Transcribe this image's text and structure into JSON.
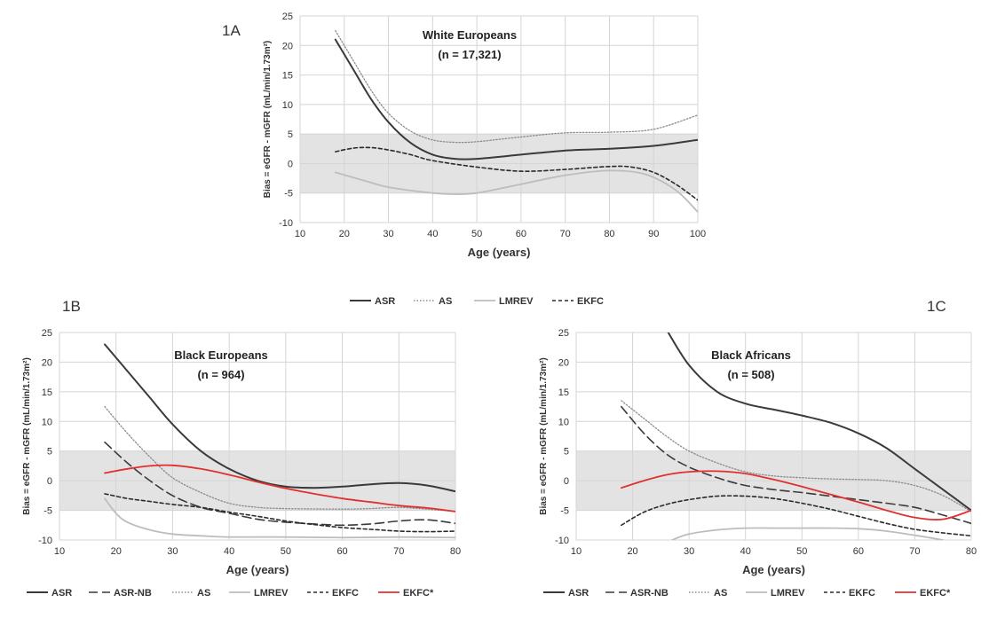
{
  "figure": {
    "label_a": "1A",
    "label_b": "1B",
    "label_c": "1C"
  },
  "legend_top": [
    "ASR",
    "AS",
    "LMREV",
    "EKFC"
  ],
  "legend_bottom": [
    "ASR",
    "ASR-NB",
    "AS",
    "LMREV",
    "EKFC",
    "EKFC*"
  ],
  "styles": {
    "ASR": {
      "color": "#3a3a3a",
      "dash": "",
      "width": 2
    },
    "ASR-NB": {
      "color": "#3a3a3a",
      "dash": "10,5",
      "width": 1.6
    },
    "AS": {
      "color": "#8c8c8c",
      "dash": "1.5,2",
      "width": 1.3
    },
    "LMREV": {
      "color": "#bdbdbd",
      "dash": "",
      "width": 1.8
    },
    "EKFC": {
      "color": "#2a2a2a",
      "dash": "4,3",
      "width": 1.6
    },
    "EKFC*": {
      "color": "#e0312f",
      "dash": "",
      "width": 1.8
    }
  },
  "band_color": "#e3e3e3",
  "chart_data": [
    {
      "id": "1A",
      "type": "line",
      "inset_title": "White Europeans",
      "inset_n": "(n = 17,321)",
      "xlabel": "Age (years)",
      "ylabel": "Bias = eGFR - mGFR (mL/min/1.73m²)",
      "xlim": [
        10,
        100
      ],
      "ylim": [
        -10,
        25
      ],
      "xticks": [
        10,
        20,
        30,
        40,
        50,
        60,
        70,
        80,
        90,
        100
      ],
      "yticks": [
        -10,
        -5,
        0,
        5,
        10,
        15,
        20,
        25
      ],
      "band": [
        -5,
        5
      ],
      "grid": true,
      "series": [
        {
          "name": "ASR",
          "points": [
            [
              18,
              21
            ],
            [
              22,
              16
            ],
            [
              26,
              11
            ],
            [
              30,
              7
            ],
            [
              35,
              3.5
            ],
            [
              40,
              1.5
            ],
            [
              45,
              0.8
            ],
            [
              50,
              0.8
            ],
            [
              60,
              1.5
            ],
            [
              70,
              2.2
            ],
            [
              80,
              2.5
            ],
            [
              90,
              3
            ],
            [
              100,
              4
            ]
          ]
        },
        {
          "name": "AS",
          "points": [
            [
              18,
              22.5
            ],
            [
              22,
              17.5
            ],
            [
              26,
              12.5
            ],
            [
              30,
              8.5
            ],
            [
              35,
              5.5
            ],
            [
              40,
              4
            ],
            [
              45,
              3.6
            ],
            [
              50,
              3.7
            ],
            [
              60,
              4.5
            ],
            [
              70,
              5.2
            ],
            [
              80,
              5.3
            ],
            [
              90,
              5.8
            ],
            [
              100,
              8.2
            ]
          ]
        },
        {
          "name": "LMREV",
          "points": [
            [
              18,
              -1.5
            ],
            [
              25,
              -3
            ],
            [
              30,
              -4
            ],
            [
              40,
              -5
            ],
            [
              45,
              -5.2
            ],
            [
              50,
              -5
            ],
            [
              60,
              -3.5
            ],
            [
              70,
              -2
            ],
            [
              80,
              -1.2
            ],
            [
              88,
              -1.8
            ],
            [
              95,
              -4.5
            ],
            [
              100,
              -8.2
            ]
          ]
        },
        {
          "name": "EKFC",
          "points": [
            [
              18,
              2
            ],
            [
              22,
              2.6
            ],
            [
              26,
              2.7
            ],
            [
              30,
              2.3
            ],
            [
              35,
              1.5
            ],
            [
              40,
              0.5
            ],
            [
              50,
              -0.6
            ],
            [
              60,
              -1.3
            ],
            [
              70,
              -1
            ],
            [
              80,
              -0.5
            ],
            [
              85,
              -0.6
            ],
            [
              90,
              -1.5
            ],
            [
              95,
              -3.5
            ],
            [
              100,
              -6.2
            ]
          ]
        }
      ]
    },
    {
      "id": "1B",
      "type": "line",
      "inset_title": "Black Europeans",
      "inset_n": "(n = 964)",
      "xlabel": "Age (years)",
      "ylabel": "Bias = eGFR - mGFR (mL/min/1.73m²)",
      "xlim": [
        10,
        80
      ],
      "ylim": [
        -10,
        25
      ],
      "xticks": [
        10,
        20,
        30,
        40,
        50,
        60,
        70,
        80
      ],
      "yticks": [
        -10,
        -5,
        0,
        5,
        10,
        15,
        20,
        25
      ],
      "band": [
        -5,
        5
      ],
      "grid": true,
      "series": [
        {
          "name": "ASR",
          "points": [
            [
              18,
              23
            ],
            [
              22,
              18.5
            ],
            [
              26,
              14
            ],
            [
              30,
              9.5
            ],
            [
              35,
              5
            ],
            [
              40,
              2
            ],
            [
              45,
              0
            ],
            [
              50,
              -1
            ],
            [
              55,
              -1.2
            ],
            [
              60,
              -1
            ],
            [
              65,
              -0.6
            ],
            [
              70,
              -0.4
            ],
            [
              75,
              -0.8
            ],
            [
              80,
              -1.8
            ]
          ]
        },
        {
          "name": "ASR-NB",
          "points": [
            [
              18,
              6.5
            ],
            [
              22,
              3
            ],
            [
              26,
              0
            ],
            [
              30,
              -2.5
            ],
            [
              35,
              -4.5
            ],
            [
              40,
              -5.5
            ],
            [
              45,
              -6.5
            ],
            [
              50,
              -7
            ],
            [
              55,
              -7.3
            ],
            [
              60,
              -7.5
            ],
            [
              65,
              -7.3
            ],
            [
              70,
              -6.8
            ],
            [
              75,
              -6.6
            ],
            [
              80,
              -7.2
            ]
          ]
        },
        {
          "name": "AS",
          "points": [
            [
              18,
              12.5
            ],
            [
              22,
              8
            ],
            [
              26,
              4
            ],
            [
              30,
              0.5
            ],
            [
              35,
              -2
            ],
            [
              40,
              -3.8
            ],
            [
              45,
              -4.5
            ],
            [
              50,
              -4.7
            ],
            [
              60,
              -4.8
            ],
            [
              65,
              -4.7
            ],
            [
              70,
              -4.5
            ],
            [
              75,
              -4.8
            ],
            [
              80,
              -5.2
            ]
          ]
        },
        {
          "name": "LMREV",
          "points": [
            [
              18,
              -3
            ],
            [
              20,
              -5.5
            ],
            [
              22,
              -7
            ],
            [
              26,
              -8.3
            ],
            [
              30,
              -9
            ],
            [
              35,
              -9.3
            ],
            [
              40,
              -9.5
            ],
            [
              50,
              -9.5
            ],
            [
              60,
              -9.6
            ],
            [
              70,
              -9.5
            ],
            [
              80,
              -9.6
            ]
          ]
        },
        {
          "name": "EKFC",
          "points": [
            [
              18,
              -2.2
            ],
            [
              22,
              -3
            ],
            [
              26,
              -3.5
            ],
            [
              30,
              -4
            ],
            [
              35,
              -4.5
            ],
            [
              40,
              -5.3
            ],
            [
              45,
              -6
            ],
            [
              50,
              -6.8
            ],
            [
              55,
              -7.4
            ],
            [
              60,
              -7.9
            ],
            [
              65,
              -8.2
            ],
            [
              70,
              -8.5
            ],
            [
              75,
              -8.6
            ],
            [
              80,
              -8.5
            ]
          ]
        },
        {
          "name": "EKFC*",
          "points": [
            [
              18,
              1.3
            ],
            [
              22,
              2
            ],
            [
              26,
              2.5
            ],
            [
              30,
              2.6
            ],
            [
              35,
              2
            ],
            [
              40,
              1
            ],
            [
              45,
              -0.2
            ],
            [
              50,
              -1.3
            ],
            [
              55,
              -2.2
            ],
            [
              60,
              -3
            ],
            [
              65,
              -3.6
            ],
            [
              70,
              -4.2
            ],
            [
              75,
              -4.6
            ],
            [
              80,
              -5.2
            ]
          ]
        }
      ]
    },
    {
      "id": "1C",
      "type": "line",
      "inset_title": "Black Africans",
      "inset_n": "(n = 508)",
      "xlabel": "Age (years)",
      "ylabel": "Bias = eGFR - mGFR (mL/min/1.73m²)",
      "xlim": [
        10,
        80
      ],
      "ylim": [
        -10,
        25
      ],
      "xticks": [
        10,
        20,
        30,
        40,
        50,
        60,
        70,
        80
      ],
      "yticks": [
        -10,
        -5,
        0,
        5,
        10,
        15,
        20,
        25
      ],
      "band": [
        -5,
        5
      ],
      "grid": true,
      "series": [
        {
          "name": "ASR",
          "points": [
            [
              26,
              25.5
            ],
            [
              30,
              19.5
            ],
            [
              35,
              15
            ],
            [
              40,
              13
            ],
            [
              45,
              12
            ],
            [
              50,
              11
            ],
            [
              55,
              9.8
            ],
            [
              60,
              8
            ],
            [
              65,
              5.5
            ],
            [
              70,
              2
            ],
            [
              75,
              -1.5
            ],
            [
              80,
              -5
            ]
          ]
        },
        {
          "name": "ASR-NB",
          "points": [
            [
              18,
              12.5
            ],
            [
              22,
              8
            ],
            [
              26,
              4.5
            ],
            [
              30,
              2.3
            ],
            [
              35,
              0.5
            ],
            [
              40,
              -0.8
            ],
            [
              45,
              -1.5
            ],
            [
              50,
              -2
            ],
            [
              55,
              -2.6
            ],
            [
              60,
              -3.2
            ],
            [
              65,
              -3.8
            ],
            [
              70,
              -4.5
            ],
            [
              75,
              -5.8
            ],
            [
              80,
              -7.2
            ]
          ]
        },
        {
          "name": "AS",
          "points": [
            [
              18,
              13.5
            ],
            [
              22,
              10.5
            ],
            [
              26,
              7.5
            ],
            [
              30,
              5
            ],
            [
              35,
              3
            ],
            [
              40,
              1.5
            ],
            [
              45,
              0.8
            ],
            [
              50,
              0.5
            ],
            [
              55,
              0.3
            ],
            [
              60,
              0.2
            ],
            [
              65,
              0
            ],
            [
              70,
              -0.8
            ],
            [
              75,
              -2.5
            ],
            [
              80,
              -5.2
            ]
          ]
        },
        {
          "name": "LMREV",
          "points": [
            [
              27,
              -10
            ],
            [
              30,
              -9
            ],
            [
              35,
              -8.3
            ],
            [
              40,
              -8
            ],
            [
              45,
              -8
            ],
            [
              50,
              -8
            ],
            [
              55,
              -8
            ],
            [
              60,
              -8.1
            ],
            [
              65,
              -8.5
            ],
            [
              70,
              -9.2
            ],
            [
              75,
              -10
            ]
          ]
        },
        {
          "name": "EKFC",
          "points": [
            [
              18,
              -7.5
            ],
            [
              22,
              -5.3
            ],
            [
              26,
              -4
            ],
            [
              30,
              -3.2
            ],
            [
              35,
              -2.6
            ],
            [
              40,
              -2.6
            ],
            [
              45,
              -3
            ],
            [
              50,
              -3.8
            ],
            [
              55,
              -4.8
            ],
            [
              60,
              -6
            ],
            [
              65,
              -7.2
            ],
            [
              70,
              -8.2
            ],
            [
              75,
              -8.8
            ],
            [
              80,
              -9.3
            ]
          ]
        },
        {
          "name": "EKFC*",
          "points": [
            [
              18,
              -1.2
            ],
            [
              22,
              0
            ],
            [
              26,
              1
            ],
            [
              30,
              1.5
            ],
            [
              35,
              1.6
            ],
            [
              40,
              1.2
            ],
            [
              45,
              0.2
            ],
            [
              50,
              -1
            ],
            [
              55,
              -2.3
            ],
            [
              60,
              -3.6
            ],
            [
              65,
              -5
            ],
            [
              70,
              -6.2
            ],
            [
              75,
              -6.5
            ],
            [
              80,
              -5
            ]
          ]
        }
      ]
    }
  ]
}
